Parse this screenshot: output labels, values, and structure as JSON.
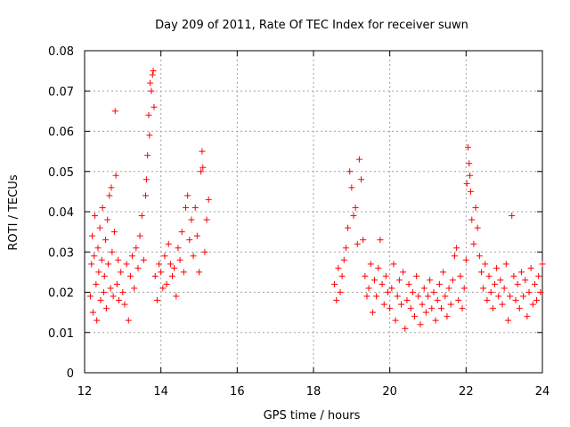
{
  "chart_data": {
    "type": "scatter",
    "title": "Day 209 of 2011, Rate Of TEC Index for receiver suwn",
    "xlabel": "GPS time / hours",
    "ylabel": "ROTI / TECUs",
    "xlim": [
      12,
      24
    ],
    "ylim": [
      0,
      0.08
    ],
    "x_ticks": [
      12,
      14,
      16,
      18,
      20,
      22,
      24
    ],
    "x_tick_labels": [
      "12",
      "14",
      "16",
      "18",
      "20",
      "22",
      "24"
    ],
    "y_ticks": [
      0,
      0.01,
      0.02,
      0.03,
      0.04,
      0.05,
      0.06,
      0.07,
      0.08
    ],
    "y_tick_labels": [
      "0",
      "0.01",
      "0.02",
      "0.03",
      "0.04",
      "0.05",
      "0.06",
      "0.07",
      "0.08"
    ],
    "grid": true,
    "marker": "+",
    "color": "#ff0000",
    "series": [
      {
        "name": "ROTI",
        "points": [
          [
            12.15,
            0.019
          ],
          [
            12.18,
            0.027
          ],
          [
            12.2,
            0.034
          ],
          [
            12.22,
            0.015
          ],
          [
            12.25,
            0.029
          ],
          [
            12.27,
            0.039
          ],
          [
            12.3,
            0.022
          ],
          [
            12.32,
            0.013
          ],
          [
            12.35,
            0.031
          ],
          [
            12.37,
            0.025
          ],
          [
            12.4,
            0.036
          ],
          [
            12.42,
            0.018
          ],
          [
            12.45,
            0.028
          ],
          [
            12.47,
            0.041
          ],
          [
            12.5,
            0.02
          ],
          [
            12.52,
            0.024
          ],
          [
            12.55,
            0.033
          ],
          [
            12.57,
            0.016
          ],
          [
            12.6,
            0.038
          ],
          [
            12.62,
            0.027
          ],
          [
            12.65,
            0.044
          ],
          [
            12.68,
            0.021
          ],
          [
            12.7,
            0.046
          ],
          [
            12.72,
            0.03
          ],
          [
            12.75,
            0.019
          ],
          [
            12.78,
            0.035
          ],
          [
            12.8,
            0.065
          ],
          [
            12.82,
            0.049
          ],
          [
            12.85,
            0.022
          ],
          [
            12.88,
            0.028
          ],
          [
            12.9,
            0.018
          ],
          [
            12.95,
            0.025
          ],
          [
            13.0,
            0.02
          ],
          [
            13.05,
            0.017
          ],
          [
            13.1,
            0.027
          ],
          [
            13.15,
            0.013
          ],
          [
            13.2,
            0.024
          ],
          [
            13.25,
            0.029
          ],
          [
            13.3,
            0.021
          ],
          [
            13.35,
            0.031
          ],
          [
            13.4,
            0.026
          ],
          [
            13.45,
            0.034
          ],
          [
            13.5,
            0.039
          ],
          [
            13.55,
            0.028
          ],
          [
            13.6,
            0.044
          ],
          [
            13.62,
            0.048
          ],
          [
            13.65,
            0.054
          ],
          [
            13.68,
            0.064
          ],
          [
            13.7,
            0.059
          ],
          [
            13.72,
            0.072
          ],
          [
            13.75,
            0.07
          ],
          [
            13.78,
            0.074
          ],
          [
            13.8,
            0.075
          ],
          [
            13.82,
            0.066
          ],
          [
            13.85,
            0.024
          ],
          [
            13.9,
            0.018
          ],
          [
            13.95,
            0.027
          ],
          [
            14.0,
            0.025
          ],
          [
            14.05,
            0.021
          ],
          [
            14.1,
            0.029
          ],
          [
            14.15,
            0.022
          ],
          [
            14.2,
            0.032
          ],
          [
            14.25,
            0.027
          ],
          [
            14.3,
            0.024
          ],
          [
            14.35,
            0.026
          ],
          [
            14.4,
            0.019
          ],
          [
            14.45,
            0.031
          ],
          [
            14.5,
            0.028
          ],
          [
            14.55,
            0.035
          ],
          [
            14.6,
            0.025
          ],
          [
            14.65,
            0.041
          ],
          [
            14.7,
            0.044
          ],
          [
            14.75,
            0.033
          ],
          [
            14.8,
            0.038
          ],
          [
            14.85,
            0.029
          ],
          [
            14.9,
            0.041
          ],
          [
            14.95,
            0.034
          ],
          [
            15.0,
            0.025
          ],
          [
            15.05,
            0.05
          ],
          [
            15.08,
            0.055
          ],
          [
            15.1,
            0.051
          ],
          [
            15.15,
            0.03
          ],
          [
            15.2,
            0.038
          ],
          [
            15.25,
            0.043
          ],
          [
            18.55,
            0.022
          ],
          [
            18.6,
            0.018
          ],
          [
            18.65,
            0.026
          ],
          [
            18.7,
            0.02
          ],
          [
            18.75,
            0.024
          ],
          [
            18.8,
            0.028
          ],
          [
            18.85,
            0.031
          ],
          [
            18.9,
            0.036
          ],
          [
            18.95,
            0.05
          ],
          [
            19.0,
            0.046
          ],
          [
            19.05,
            0.039
          ],
          [
            19.1,
            0.041
          ],
          [
            19.15,
            0.032
          ],
          [
            19.2,
            0.053
          ],
          [
            19.25,
            0.048
          ],
          [
            19.3,
            0.033
          ],
          [
            19.35,
            0.024
          ],
          [
            19.4,
            0.019
          ],
          [
            19.45,
            0.021
          ],
          [
            19.5,
            0.027
          ],
          [
            19.55,
            0.015
          ],
          [
            19.6,
            0.023
          ],
          [
            19.65,
            0.019
          ],
          [
            19.7,
            0.026
          ],
          [
            19.75,
            0.033
          ],
          [
            19.8,
            0.022
          ],
          [
            19.85,
            0.017
          ],
          [
            19.9,
            0.024
          ],
          [
            19.95,
            0.02
          ],
          [
            20.0,
            0.016
          ],
          [
            20.05,
            0.021
          ],
          [
            20.1,
            0.027
          ],
          [
            20.15,
            0.013
          ],
          [
            20.2,
            0.019
          ],
          [
            20.25,
            0.023
          ],
          [
            20.3,
            0.017
          ],
          [
            20.35,
            0.025
          ],
          [
            20.4,
            0.011
          ],
          [
            20.45,
            0.018
          ],
          [
            20.5,
            0.022
          ],
          [
            20.55,
            0.016
          ],
          [
            20.6,
            0.02
          ],
          [
            20.65,
            0.014
          ],
          [
            20.7,
            0.024
          ],
          [
            20.75,
            0.019
          ],
          [
            20.8,
            0.012
          ],
          [
            20.85,
            0.017
          ],
          [
            20.9,
            0.021
          ],
          [
            20.95,
            0.015
          ],
          [
            21.0,
            0.019
          ],
          [
            21.05,
            0.023
          ],
          [
            21.1,
            0.016
          ],
          [
            21.15,
            0.02
          ],
          [
            21.2,
            0.013
          ],
          [
            21.25,
            0.018
          ],
          [
            21.3,
            0.022
          ],
          [
            21.35,
            0.016
          ],
          [
            21.4,
            0.025
          ],
          [
            21.45,
            0.019
          ],
          [
            21.5,
            0.014
          ],
          [
            21.55,
            0.021
          ],
          [
            21.6,
            0.017
          ],
          [
            21.65,
            0.023
          ],
          [
            21.7,
            0.029
          ],
          [
            21.75,
            0.031
          ],
          [
            21.8,
            0.018
          ],
          [
            21.85,
            0.024
          ],
          [
            21.9,
            0.016
          ],
          [
            21.95,
            0.021
          ],
          [
            22.0,
            0.028
          ],
          [
            22.02,
            0.047
          ],
          [
            22.05,
            0.056
          ],
          [
            22.08,
            0.052
          ],
          [
            22.1,
            0.049
          ],
          [
            22.12,
            0.045
          ],
          [
            22.15,
            0.038
          ],
          [
            22.2,
            0.032
          ],
          [
            22.25,
            0.041
          ],
          [
            22.3,
            0.036
          ],
          [
            22.35,
            0.029
          ],
          [
            22.4,
            0.025
          ],
          [
            22.45,
            0.021
          ],
          [
            22.5,
            0.027
          ],
          [
            22.55,
            0.018
          ],
          [
            22.6,
            0.024
          ],
          [
            22.65,
            0.02
          ],
          [
            22.7,
            0.016
          ],
          [
            22.75,
            0.022
          ],
          [
            22.8,
            0.026
          ],
          [
            22.85,
            0.019
          ],
          [
            22.9,
            0.023
          ],
          [
            22.95,
            0.017
          ],
          [
            23.0,
            0.021
          ],
          [
            23.05,
            0.027
          ],
          [
            23.1,
            0.013
          ],
          [
            23.15,
            0.019
          ],
          [
            23.2,
            0.039
          ],
          [
            23.25,
            0.024
          ],
          [
            23.3,
            0.018
          ],
          [
            23.35,
            0.022
          ],
          [
            23.4,
            0.016
          ],
          [
            23.45,
            0.025
          ],
          [
            23.5,
            0.019
          ],
          [
            23.55,
            0.023
          ],
          [
            23.6,
            0.014
          ],
          [
            23.65,
            0.02
          ],
          [
            23.7,
            0.026
          ],
          [
            23.75,
            0.017
          ],
          [
            23.8,
            0.022
          ],
          [
            23.85,
            0.018
          ],
          [
            23.9,
            0.024
          ],
          [
            23.95,
            0.02
          ],
          [
            24.0,
            0.027
          ]
        ]
      }
    ]
  }
}
